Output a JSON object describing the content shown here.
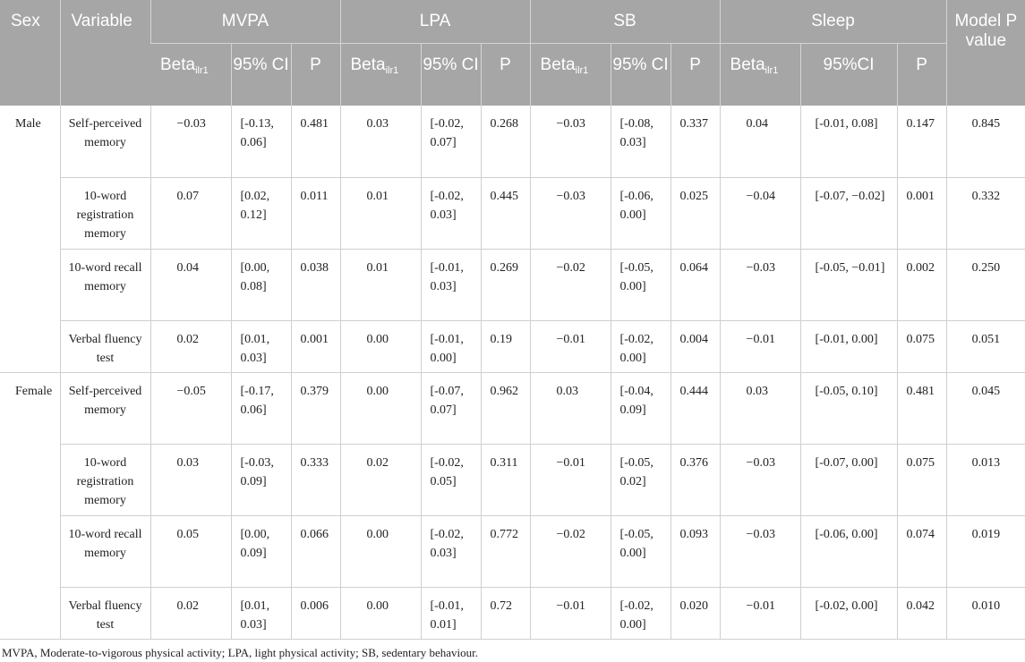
{
  "header": {
    "sex": "Sex",
    "variable": "Variable",
    "groups": [
      "MVPA",
      "LPA",
      "SB",
      "Sleep"
    ],
    "model_p": "Model P value",
    "beta_label": "Beta",
    "beta_sub": "ilr1",
    "ci_label": "95% CI",
    "ci_label_sleep": "95%CI",
    "p_label": "P"
  },
  "rows": [
    {
      "sex": "Male",
      "variable": "Self-perceived memory",
      "mvpa": {
        "beta": "−0.03",
        "ci": "[-0.13, 0.06]",
        "p": "0.481"
      },
      "lpa": {
        "beta": "0.03",
        "ci": "[-0.02, 0.07]",
        "p": "0.268"
      },
      "sb": {
        "beta": "−0.03",
        "ci": "[-0.08, 0.03]",
        "p": "0.337"
      },
      "sleep": {
        "beta": "0.04",
        "ci": "[-0.01, 0.08]",
        "p": "0.147"
      },
      "model_p": "0.845"
    },
    {
      "sex": "",
      "variable": "10-word registration memory",
      "mvpa": {
        "beta": "0.07",
        "ci": "[0.02, 0.12]",
        "p": "0.011"
      },
      "lpa": {
        "beta": "0.01",
        "ci": "[-0.02, 0.03]",
        "p": "0.445"
      },
      "sb": {
        "beta": "−0.03",
        "ci": "[-0.06, 0.00]",
        "p": "0.025"
      },
      "sleep": {
        "beta": "−0.04",
        "ci": "[-0.07, −0.02]",
        "p": "0.001"
      },
      "model_p": "0.332"
    },
    {
      "sex": "",
      "variable": "10-word recall memory",
      "mvpa": {
        "beta": "0.04",
        "ci": "[0.00, 0.08]",
        "p": "0.038"
      },
      "lpa": {
        "beta": "0.01",
        "ci": "[-0.01, 0.03]",
        "p": "0.269"
      },
      "sb": {
        "beta": "−0.02",
        "ci": "[-0.05, 0.00]",
        "p": "0.064"
      },
      "sleep": {
        "beta": "−0.03",
        "ci": "[-0.05, −0.01]",
        "p": "0.002"
      },
      "model_p": "0.250"
    },
    {
      "sex": "",
      "variable": "Verbal fluency test",
      "mvpa": {
        "beta": "0.02",
        "ci": "[0.01, 0.03]",
        "p": "0.001"
      },
      "lpa": {
        "beta": "0.00",
        "ci": "[-0.01, 0.00]",
        "p": "0.19"
      },
      "sb": {
        "beta": "−0.01",
        "ci": "[-0.02, 0.00]",
        "p": "0.004"
      },
      "sleep": {
        "beta": "−0.01",
        "ci": "[-0.01, 0.00]",
        "p": "0.075"
      },
      "model_p": "0.051"
    },
    {
      "sex": "Female",
      "variable": "Self-perceived memory",
      "mvpa": {
        "beta": "−0.05",
        "ci": "[-0.17, 0.06]",
        "p": "0.379"
      },
      "lpa": {
        "beta": "0.00",
        "ci": "[-0.07, 0.07]",
        "p": "0.962"
      },
      "sb": {
        "beta": "0.03",
        "ci": "[-0.04, 0.09]",
        "p": "0.444"
      },
      "sleep": {
        "beta": "0.03",
        "ci": "[-0.05, 0.10]",
        "p": "0.481"
      },
      "model_p": "0.045"
    },
    {
      "sex": "",
      "variable": "10-word registration memory",
      "mvpa": {
        "beta": "0.03",
        "ci": "[-0.03, 0.09]",
        "p": "0.333"
      },
      "lpa": {
        "beta": "0.02",
        "ci": "[-0.02, 0.05]",
        "p": "0.311"
      },
      "sb": {
        "beta": "−0.01",
        "ci": "[-0.05, 0.02]",
        "p": "0.376"
      },
      "sleep": {
        "beta": "−0.03",
        "ci": "[-0.07, 0.00]",
        "p": "0.075"
      },
      "model_p": "0.013"
    },
    {
      "sex": "",
      "variable": "10-word recall memory",
      "mvpa": {
        "beta": "0.05",
        "ci": "[0.00, 0.09]",
        "p": "0.066"
      },
      "lpa": {
        "beta": "0.00",
        "ci": "[-0.02, 0.03]",
        "p": "0.772"
      },
      "sb": {
        "beta": "−0.02",
        "ci": "[-0.05, 0.00]",
        "p": "0.093"
      },
      "sleep": {
        "beta": "−0.03",
        "ci": "[-0.06, 0.00]",
        "p": "0.074"
      },
      "model_p": "0.019"
    },
    {
      "sex": "",
      "variable": "Verbal fluency test",
      "mvpa": {
        "beta": "0.02",
        "ci": "[0.01, 0.03]",
        "p": "0.006"
      },
      "lpa": {
        "beta": "0.00",
        "ci": "[-0.01, 0.01]",
        "p": "0.72"
      },
      "sb": {
        "beta": "−0.01",
        "ci": "[-0.02, 0.00]",
        "p": "0.020"
      },
      "sleep": {
        "beta": "−0.01",
        "ci": "[-0.02, 0.00]",
        "p": "0.042"
      },
      "model_p": "0.010"
    }
  ],
  "footnote": "MVPA, Moderate-to-vigorous physical activity; LPA, light physical activity; SB, sedentary behaviour."
}
